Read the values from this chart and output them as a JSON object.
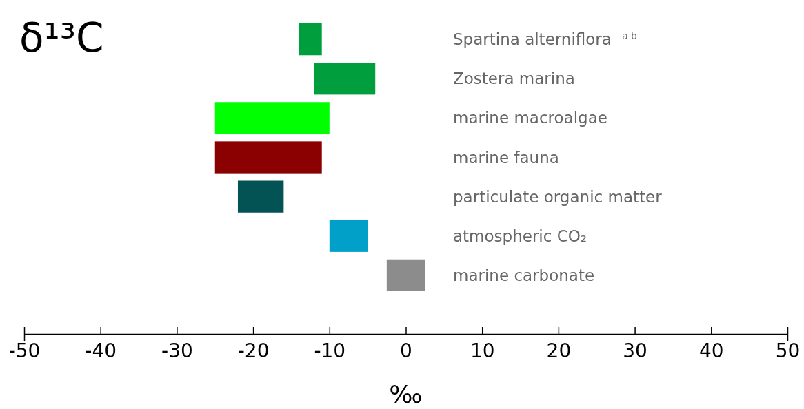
{
  "chart_data": {
    "type": "bar",
    "orientation": "horizontal",
    "title": "δ¹³C",
    "xlabel": "‰",
    "categories": [
      "Spartina alterniflora $^{a b}$",
      "Zostera marina",
      "marine macroalgae",
      "marine fauna",
      "particulate organic matter",
      "atmospheric CO₂",
      "marine carbonate"
    ],
    "base": [
      -14,
      -12,
      -25,
      -25,
      -22,
      -10,
      -2.5
    ],
    "values": [
      3,
      8,
      15,
      14,
      6,
      5,
      5
    ],
    "colors": [
      "#009e3c",
      "#009e3c",
      "#00ff00",
      "#8b0000",
      "#035254",
      "#00a0c8",
      "#8c8c8c"
    ],
    "xlim": [
      -50,
      50
    ],
    "xticks": [
      -50,
      -40,
      -30,
      -20,
      -10,
      0,
      10,
      20,
      30,
      40,
      50
    ],
    "grid": false
  }
}
